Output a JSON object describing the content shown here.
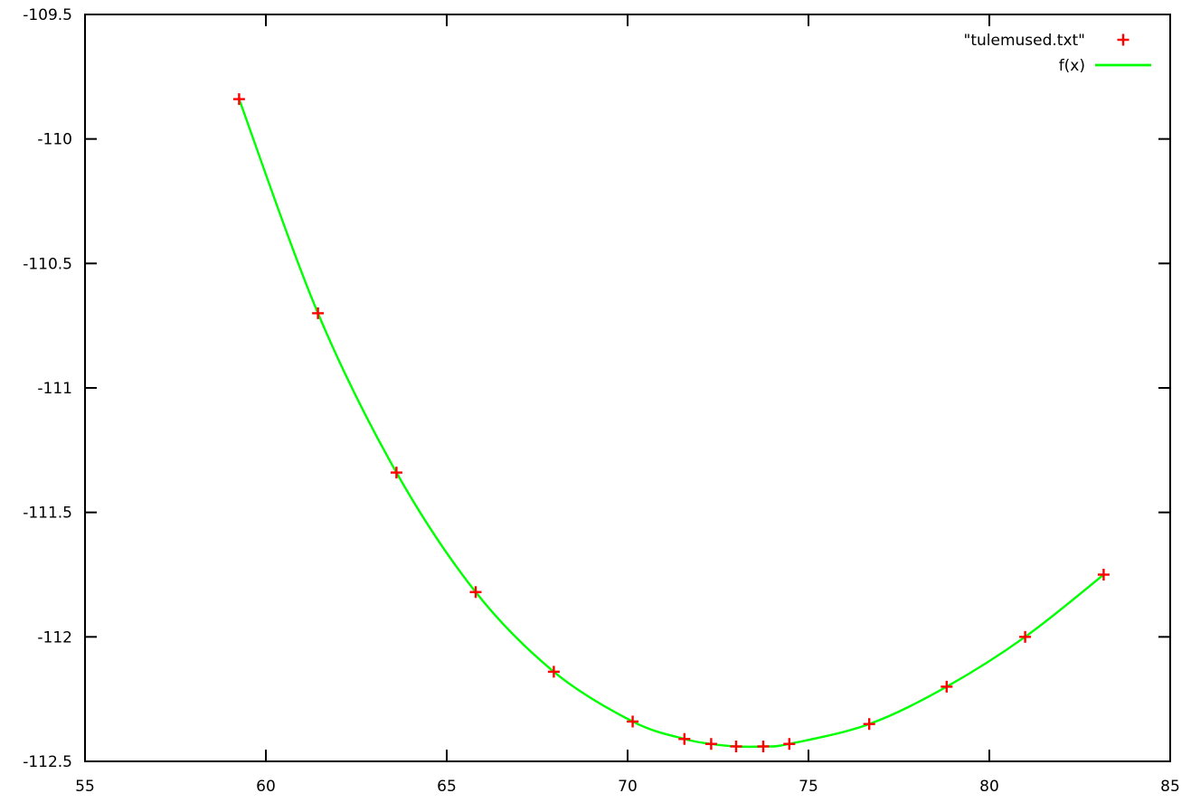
{
  "chart_data": {
    "type": "scatter",
    "title": "",
    "xlabel": "",
    "ylabel": "",
    "xlim": [
      55,
      85
    ],
    "ylim": [
      -112.5,
      -109.5
    ],
    "xticks": [
      55,
      60,
      65,
      70,
      75,
      80,
      85
    ],
    "yticks": [
      -109.5,
      -110,
      -110.5,
      -111,
      -111.5,
      -112,
      -112.5
    ],
    "grid": false,
    "legend_position": "top-right-inside",
    "background": "#ffffff",
    "axis_color": "#000000",
    "series": [
      {
        "name": "\"tulemused.txt\"",
        "type": "points",
        "marker": "plus",
        "color": "#ff0000",
        "points": [
          [
            59.26,
            -109.84
          ],
          [
            61.44,
            -110.7
          ],
          [
            63.61,
            -111.34
          ],
          [
            65.8,
            -111.82
          ],
          [
            67.96,
            -112.14
          ],
          [
            70.14,
            -112.34
          ],
          [
            71.57,
            -112.41
          ],
          [
            72.31,
            -112.43
          ],
          [
            73.0,
            -112.44
          ],
          [
            73.75,
            -112.44
          ],
          [
            74.47,
            -112.43
          ],
          [
            76.68,
            -112.35
          ],
          [
            78.82,
            -112.2
          ],
          [
            80.99,
            -112.0
          ],
          [
            83.16,
            -111.75
          ]
        ]
      },
      {
        "name": "f(x)",
        "type": "line",
        "color": "#00ff00",
        "note": "smooth fitted curve passing through the data points, spanning x = 59.26 to 83.16"
      }
    ]
  }
}
